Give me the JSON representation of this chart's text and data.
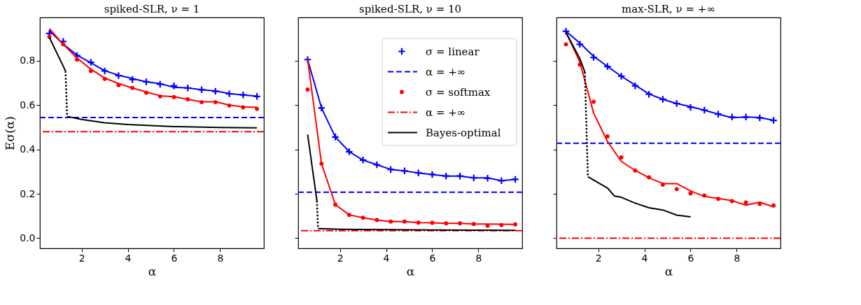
{
  "chart_data": [
    {
      "type": "line",
      "title": "spiked-SLR,  ν = 1",
      "xlabel": "α",
      "ylabel": "Eσ(α)",
      "x": [
        0.6,
        1.2,
        1.8,
        2.4,
        3.0,
        3.6,
        4.2,
        4.8,
        5.4,
        6.0,
        6.6,
        7.2,
        7.8,
        8.4,
        9.0,
        9.6
      ],
      "xlim": [
        0.19,
        9.9
      ],
      "xticks": [
        2,
        4,
        6,
        8
      ],
      "ylim": [
        -0.046,
        0.995
      ],
      "yticks": [
        {
          "value": 0,
          "label": "0.0"
        },
        0.2,
        0.4,
        0.6,
        0.8
      ],
      "grid": false,
      "series": [
        {
          "type": "scatter",
          "marker": "cross",
          "color": "#0000ff",
          "values": [
            0.923,
            0.887,
            0.823,
            0.793,
            0.754,
            0.733,
            0.715,
            0.705,
            0.694,
            0.687,
            0.677,
            0.669,
            0.662,
            0.651,
            0.646,
            0.639
          ]
        },
        {
          "color": "#0000ff",
          "values": [
            0.935,
            0.875,
            0.825,
            0.79,
            0.755,
            0.735,
            0.72,
            0.705,
            0.697,
            0.68,
            0.677,
            0.669,
            0.664,
            0.652,
            0.646,
            0.64
          ]
        },
        {
          "type": "scatter",
          "marker": "circle",
          "color": "#ff0000",
          "values": [
            0.908,
            0.874,
            0.805,
            0.754,
            0.718,
            0.69,
            0.677,
            0.656,
            0.639,
            0.636,
            0.626,
            0.613,
            0.613,
            0.598,
            0.59,
            0.583
          ]
        },
        {
          "color": "#ff0000",
          "values": [
            0.945,
            0.874,
            0.812,
            0.762,
            0.722,
            0.697,
            0.677,
            0.659,
            0.642,
            0.638,
            0.626,
            0.615,
            0.615,
            0.6,
            0.592,
            0.59
          ]
        },
        {
          "color": "#000000",
          "x": [
            0.6,
            1.3
          ],
          "values": [
            0.905,
            0.754
          ]
        },
        {
          "line_style": "dotted",
          "color": "#000000",
          "x": [
            1.3,
            1.37
          ],
          "values": [
            0.754,
            0.549
          ]
        },
        {
          "color": "#000000",
          "x": [
            1.37,
            2,
            3,
            4,
            6,
            8,
            9.6
          ],
          "values": [
            0.549,
            0.535,
            0.52,
            0.512,
            0.503,
            0.499,
            0.497
          ]
        }
      ],
      "ref_lines": [
        {
          "axis": "y",
          "value": 0.544,
          "color": "#0000ff",
          "line_style": "dashed"
        },
        {
          "axis": "y",
          "value": 0.48,
          "color": "#ff0000",
          "line_style": "dashdot"
        }
      ]
    },
    {
      "type": "line",
      "title": "spiked-SLR,  ν = 10",
      "xlabel": "α",
      "x": [
        0.6,
        1.2,
        1.8,
        2.4,
        3.0,
        3.6,
        4.2,
        4.8,
        5.4,
        6.0,
        6.6,
        7.2,
        7.8,
        8.4,
        9.0,
        9.6
      ],
      "xlim": [
        0.19,
        9.9
      ],
      "xticks": [
        2,
        4,
        6,
        8
      ],
      "ylim": [
        -0.046,
        0.995
      ],
      "yticks": [
        0,
        0.2,
        0.4,
        0.6,
        0.8
      ],
      "tick_labels": "x",
      "grid": false,
      "legend": "top right",
      "series": [
        {
          "name": "σ = linear",
          "type": "scatter",
          "marker": "cross",
          "color": "#0000ff",
          "values": [
            0.805,
            0.587,
            0.456,
            0.39,
            0.352,
            0.331,
            0.31,
            0.303,
            0.294,
            0.287,
            0.28,
            0.28,
            0.272,
            0.27,
            0.259,
            0.265
          ]
        },
        {
          "color": "#0000ff",
          "values": [
            0.805,
            0.587,
            0.456,
            0.39,
            0.352,
            0.331,
            0.31,
            0.303,
            0.294,
            0.287,
            0.28,
            0.28,
            0.272,
            0.272,
            0.259,
            0.265
          ]
        },
        {
          "name": "σ = softmax",
          "type": "scatter",
          "marker": "circle",
          "color": "#ff0000",
          "values": [
            0.67,
            0.336,
            0.151,
            0.105,
            0.092,
            0.082,
            0.075,
            0.075,
            0.07,
            0.069,
            0.067,
            0.067,
            0.064,
            0.056,
            0.059,
            0.062
          ]
        },
        {
          "color": "#ff0000",
          "values": [
            0.805,
            0.336,
            0.151,
            0.105,
            0.092,
            0.082,
            0.075,
            0.075,
            0.07,
            0.069,
            0.067,
            0.067,
            0.064,
            0.064,
            0.063,
            0.062
          ]
        },
        {
          "name": "Bayes-optimal",
          "color": "#000000",
          "x": [
            0.6,
            1.0
          ],
          "values": [
            0.467,
            0.169
          ]
        },
        {
          "line_style": "dotted",
          "color": "#000000",
          "x": [
            1.0,
            1.05
          ],
          "values": [
            0.169,
            0.043
          ]
        },
        {
          "color": "#000000",
          "x": [
            1.05,
            2,
            4,
            6,
            9.6
          ],
          "values": [
            0.043,
            0.04,
            0.038,
            0.037,
            0.035
          ]
        }
      ],
      "ref_lines": [
        {
          "axis": "y",
          "value": 0.207,
          "color": "#0000ff",
          "line_style": "dashed",
          "label": "α = +∞"
        },
        {
          "axis": "y",
          "value": 0.034,
          "color": "#ff0000",
          "line_style": "dashdot",
          "label": "α = +∞"
        }
      ]
    },
    {
      "type": "line",
      "title": "max-SLR,  ν = +∞",
      "xlabel": "α",
      "x": [
        0.6,
        1.2,
        1.8,
        2.4,
        3.0,
        3.6,
        4.2,
        4.8,
        5.4,
        6.0,
        6.6,
        7.2,
        7.8,
        8.4,
        9.0,
        9.6
      ],
      "xlim": [
        0.19,
        9.9
      ],
      "xticks": [
        2,
        4,
        6,
        8
      ],
      "ylim": [
        -0.046,
        0.995
      ],
      "yticks": [
        0,
        0.2,
        0.4,
        0.6,
        0.8
      ],
      "tick_labels": "x",
      "grid": false,
      "series": [
        {
          "type": "scatter",
          "marker": "cross",
          "color": "#0000ff",
          "values": [
            0.933,
            0.874,
            0.815,
            0.774,
            0.73,
            0.687,
            0.649,
            0.626,
            0.607,
            0.59,
            0.577,
            0.559,
            0.546,
            0.546,
            0.542,
            0.531
          ]
        },
        {
          "color": "#0000ff",
          "values": [
            0.933,
            0.88,
            0.82,
            0.774,
            0.73,
            0.69,
            0.65,
            0.626,
            0.607,
            0.593,
            0.577,
            0.559,
            0.543,
            0.546,
            0.544,
            0.531
          ]
        },
        {
          "type": "scatter",
          "marker": "circle",
          "color": "#ff0000",
          "values": [
            0.874,
            0.783,
            0.615,
            0.459,
            0.364,
            0.305,
            0.274,
            0.241,
            0.221,
            0.202,
            0.192,
            0.177,
            0.167,
            0.161,
            0.154,
            0.147
          ]
        },
        {
          "color": "#ff0000",
          "values": [
            0.928,
            0.795,
            0.564,
            0.436,
            0.346,
            0.305,
            0.272,
            0.246,
            0.246,
            0.213,
            0.188,
            0.179,
            0.169,
            0.149,
            0.162,
            0.141
          ]
        },
        {
          "color": "#000000",
          "x": [
            0.6,
            1.2,
            1.42
          ],
          "values": [
            0.928,
            0.81,
            0.749
          ]
        },
        {
          "line_style": "dotted",
          "color": "#000000",
          "x": [
            1.42,
            1.55
          ],
          "values": [
            0.749,
            0.277
          ]
        },
        {
          "color": "#000000",
          "x": [
            1.55,
            2.4,
            2.7,
            3.0,
            3.6,
            4.2,
            4.8,
            5.4,
            6.0
          ],
          "values": [
            0.277,
            0.226,
            0.19,
            0.184,
            0.158,
            0.137,
            0.127,
            0.104,
            0.096
          ]
        }
      ],
      "ref_lines": [
        {
          "axis": "y",
          "value": 0.428,
          "color": "#0000ff",
          "line_style": "dashed"
        },
        {
          "axis": "y",
          "value": 0,
          "color": "#ff0000",
          "line_style": "dashdot"
        }
      ]
    }
  ]
}
